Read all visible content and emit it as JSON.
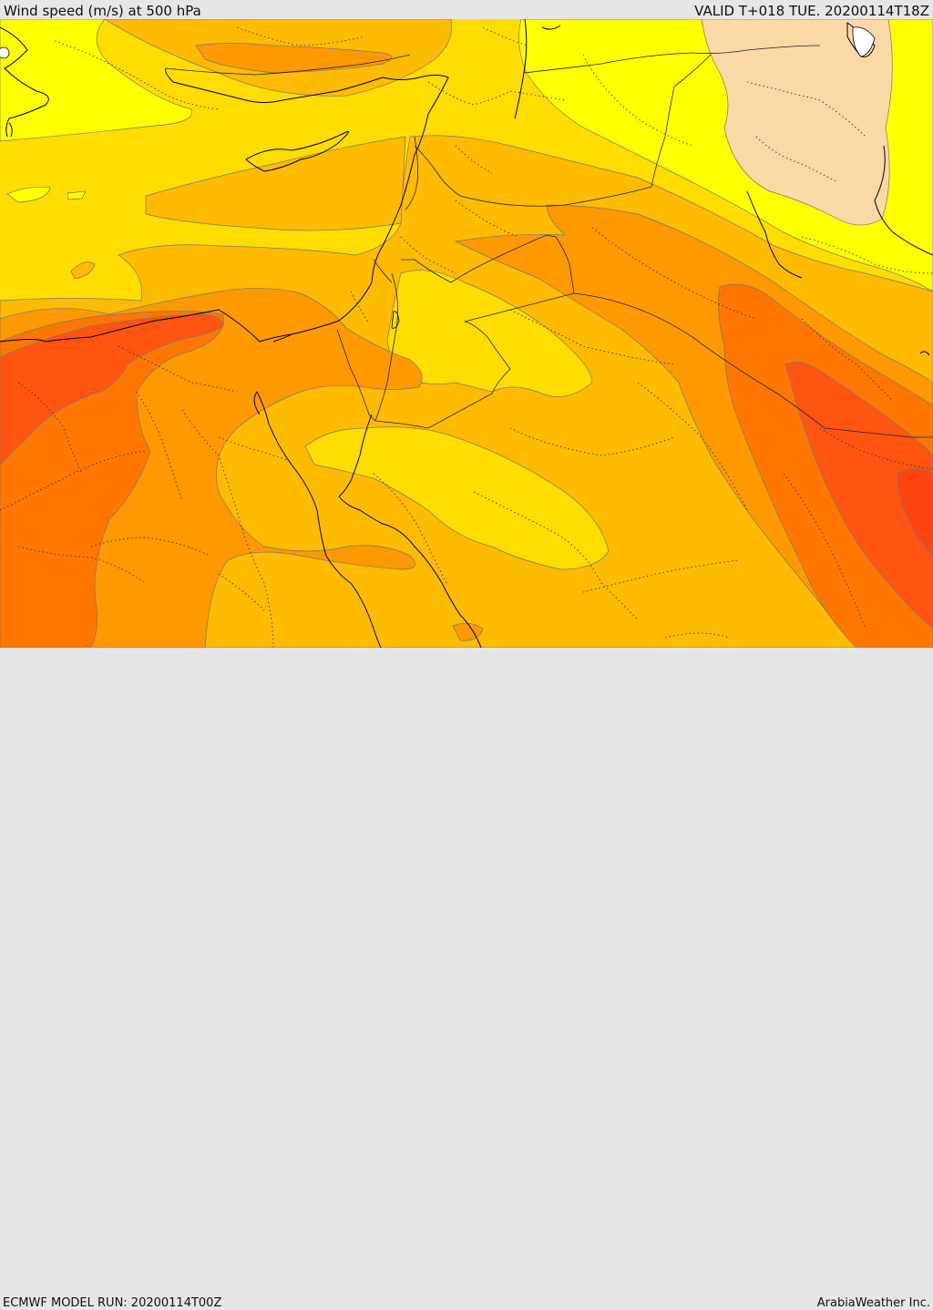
{
  "header": {
    "title": "Wind speed (m/s) at 500 hPa",
    "valid": "VALID T+018 TUE. 20200114T18Z"
  },
  "footer": {
    "model_run": "ECMWF MODEL RUN: 20200114T00Z",
    "credit": "ArabiaWeather Inc."
  },
  "map": {
    "variable": "wind speed at 500 hPa",
    "fill_colors": {
      "lightest": "#fbd9a6",
      "level_1": "#ffff00",
      "level_2": "#ffdd00",
      "level_3": "#ffbb00",
      "level_4": "#ff9900",
      "level_5": "#ff7700",
      "level_6": "#ff5511"
    }
  }
}
